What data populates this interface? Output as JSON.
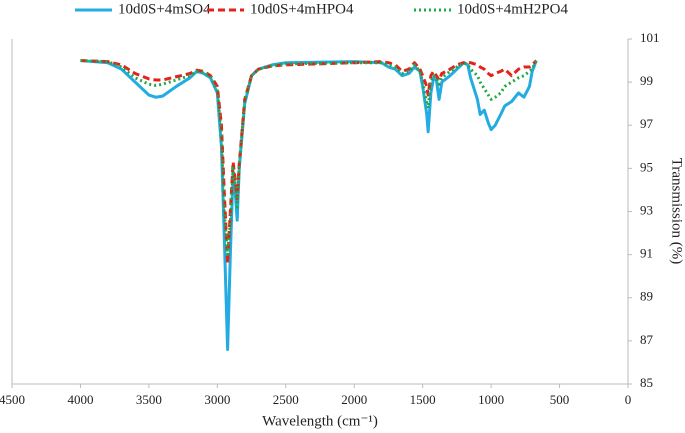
{
  "chart_data": {
    "type": "line",
    "x_label": "Wavelength (cm⁻¹)",
    "y_label": "Transmission (%)",
    "y_axis_side": "right",
    "legend": "top",
    "xlim": [
      4500,
      0
    ],
    "xticks": [
      4500,
      4000,
      3500,
      3000,
      2500,
      2000,
      1500,
      1000,
      500,
      0
    ],
    "ylim": [
      85,
      101
    ],
    "yticks": [
      85,
      87,
      89,
      91,
      93,
      95,
      97,
      99,
      101
    ],
    "x": [
      4000,
      3800,
      3700,
      3600,
      3500,
      3450,
      3400,
      3300,
      3200,
      3150,
      3100,
      3050,
      3000,
      2970,
      2950,
      2925,
      2905,
      2885,
      2870,
      2855,
      2840,
      2800,
      2750,
      2700,
      2600,
      2500,
      2000,
      1800,
      1750,
      1700,
      1650,
      1600,
      1560,
      1520,
      1500,
      1470,
      1460,
      1440,
      1420,
      1400,
      1380,
      1360,
      1300,
      1250,
      1200,
      1170,
      1150,
      1100,
      1080,
      1050,
      1020,
      1000,
      970,
      930,
      900,
      850,
      800,
      760,
      720,
      700,
      670
    ],
    "series": [
      {
        "name": "10d0S+4mSO4",
        "color": "#23abe2",
        "dash": "solid",
        "values": [
          100,
          99.9,
          99.6,
          99,
          98.4,
          98.3,
          98.35,
          98.8,
          99.2,
          99.5,
          99.4,
          99.2,
          98.5,
          96,
          92,
          86.6,
          91,
          94.8,
          94,
          92.6,
          95,
          98,
          99.3,
          99.6,
          99.8,
          99.9,
          99.95,
          99.9,
          99.7,
          99.6,
          99.3,
          99.4,
          99.7,
          99.5,
          98.8,
          97.5,
          96.7,
          98.5,
          99.2,
          99.1,
          98.2,
          99,
          99.3,
          99.6,
          99.9,
          99.8,
          99.2,
          98.2,
          97.5,
          97.7,
          97.1,
          96.8,
          97,
          97.5,
          97.9,
          98.1,
          98.5,
          98.3,
          98.8,
          99.5,
          100
        ]
      },
      {
        "name": "10d0S+4mHPO4",
        "color": "#e3221c",
        "dash": "dashed",
        "values": [
          100,
          99.95,
          99.8,
          99.4,
          99.15,
          99.1,
          99.1,
          99.25,
          99.4,
          99.55,
          99.5,
          99.3,
          98.8,
          97,
          94,
          90.6,
          93,
          95.3,
          94.5,
          93.6,
          95.2,
          98.2,
          99.3,
          99.6,
          99.75,
          99.8,
          99.9,
          99.95,
          99.9,
          99.8,
          99.5,
          99.6,
          99.9,
          99.6,
          99.3,
          98.8,
          98.4,
          99.3,
          99.5,
          99.3,
          99.1,
          99.4,
          99.6,
          99.8,
          99.9,
          99.9,
          99.9,
          99.8,
          99.7,
          99.6,
          99.4,
          99.3,
          99.4,
          99.5,
          99.6,
          99.3,
          99.6,
          99.7,
          99.7,
          99.8,
          100
        ]
      },
      {
        "name": "10d0S+4mH2PO4",
        "color": "#22a845",
        "dash": "dotted",
        "values": [
          100,
          99.95,
          99.7,
          99.2,
          98.9,
          98.85,
          98.9,
          99.1,
          99.3,
          99.5,
          99.45,
          99.25,
          98.6,
          96.5,
          93,
          91,
          92.5,
          95,
          94.3,
          93.2,
          95.1,
          98.1,
          99.3,
          99.6,
          99.75,
          99.85,
          99.9,
          99.9,
          99.8,
          99.7,
          99.4,
          99.5,
          99.8,
          99.5,
          99,
          98,
          97.8,
          99,
          99.3,
          99.2,
          98.9,
          99.2,
          99.5,
          99.7,
          99.9,
          99.8,
          99.6,
          99.3,
          99,
          98.7,
          98.4,
          98.2,
          98.3,
          98.5,
          98.8,
          99,
          99.2,
          99.3,
          99.5,
          99.6,
          100
        ]
      }
    ]
  }
}
